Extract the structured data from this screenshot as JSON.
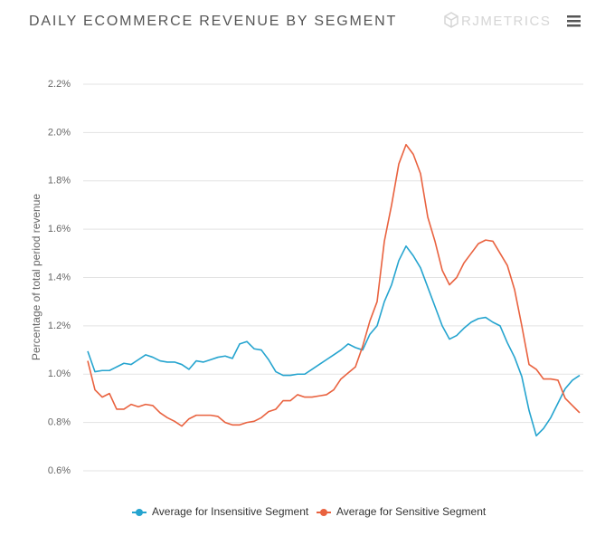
{
  "chart_data": {
    "type": "line",
    "title": "DAILY ECOMMERCE REVENUE BY SEGMENT",
    "brand": "RJMETRICS",
    "y_label": "Percentage of total period revenue",
    "ylim": [
      0.6,
      2.2
    ],
    "yticks": [
      {
        "value": 0.6,
        "label": "0.6%"
      },
      {
        "value": 0.8,
        "label": "0.8%"
      },
      {
        "value": 1.0,
        "label": "1.0%"
      },
      {
        "value": 1.2,
        "label": "1.2%"
      },
      {
        "value": 1.4,
        "label": "1.4%"
      },
      {
        "value": 1.6,
        "label": "1.6%"
      },
      {
        "value": 1.8,
        "label": "1.8%"
      },
      {
        "value": 2.0,
        "label": "2.0%"
      },
      {
        "value": 2.2,
        "label": "2.2%"
      }
    ],
    "grid": true,
    "legend": "bottom",
    "series": [
      {
        "name": "Average for Insensitive Segment",
        "color": "#25a4cf",
        "values": [
          1.095,
          1.01,
          1.015,
          1.015,
          1.03,
          1.045,
          1.04,
          1.06,
          1.08,
          1.07,
          1.055,
          1.05,
          1.05,
          1.04,
          1.02,
          1.055,
          1.05,
          1.06,
          1.07,
          1.075,
          1.065,
          1.125,
          1.135,
          1.105,
          1.1,
          1.06,
          1.01,
          0.995,
          0.995,
          1.0,
          1.0,
          1.02,
          1.04,
          1.06,
          1.08,
          1.1,
          1.125,
          1.11,
          1.1,
          1.165,
          1.2,
          1.3,
          1.37,
          1.47,
          1.53,
          1.49,
          1.44,
          1.36,
          1.28,
          1.2,
          1.145,
          1.16,
          1.19,
          1.215,
          1.23,
          1.235,
          1.215,
          1.2,
          1.13,
          1.07,
          0.99,
          0.85,
          0.745,
          0.775,
          0.82,
          0.88,
          0.94,
          0.975,
          0.995
        ]
      },
      {
        "name": "Average for Sensitive Segment",
        "color": "#e9623f",
        "values": [
          1.055,
          0.935,
          0.905,
          0.92,
          0.855,
          0.855,
          0.875,
          0.865,
          0.875,
          0.87,
          0.84,
          0.82,
          0.805,
          0.785,
          0.815,
          0.83,
          0.83,
          0.83,
          0.825,
          0.8,
          0.79,
          0.79,
          0.8,
          0.805,
          0.82,
          0.845,
          0.855,
          0.89,
          0.89,
          0.915,
          0.905,
          0.905,
          0.91,
          0.915,
          0.935,
          0.98,
          1.005,
          1.03,
          1.115,
          1.22,
          1.3,
          1.55,
          1.7,
          1.87,
          1.95,
          1.91,
          1.83,
          1.65,
          1.55,
          1.43,
          1.37,
          1.4,
          1.46,
          1.5,
          1.54,
          1.555,
          1.55,
          1.5,
          1.45,
          1.35,
          1.2,
          1.04,
          1.02,
          0.98,
          0.98,
          0.975,
          0.9,
          0.87,
          0.84
        ]
      }
    ]
  }
}
